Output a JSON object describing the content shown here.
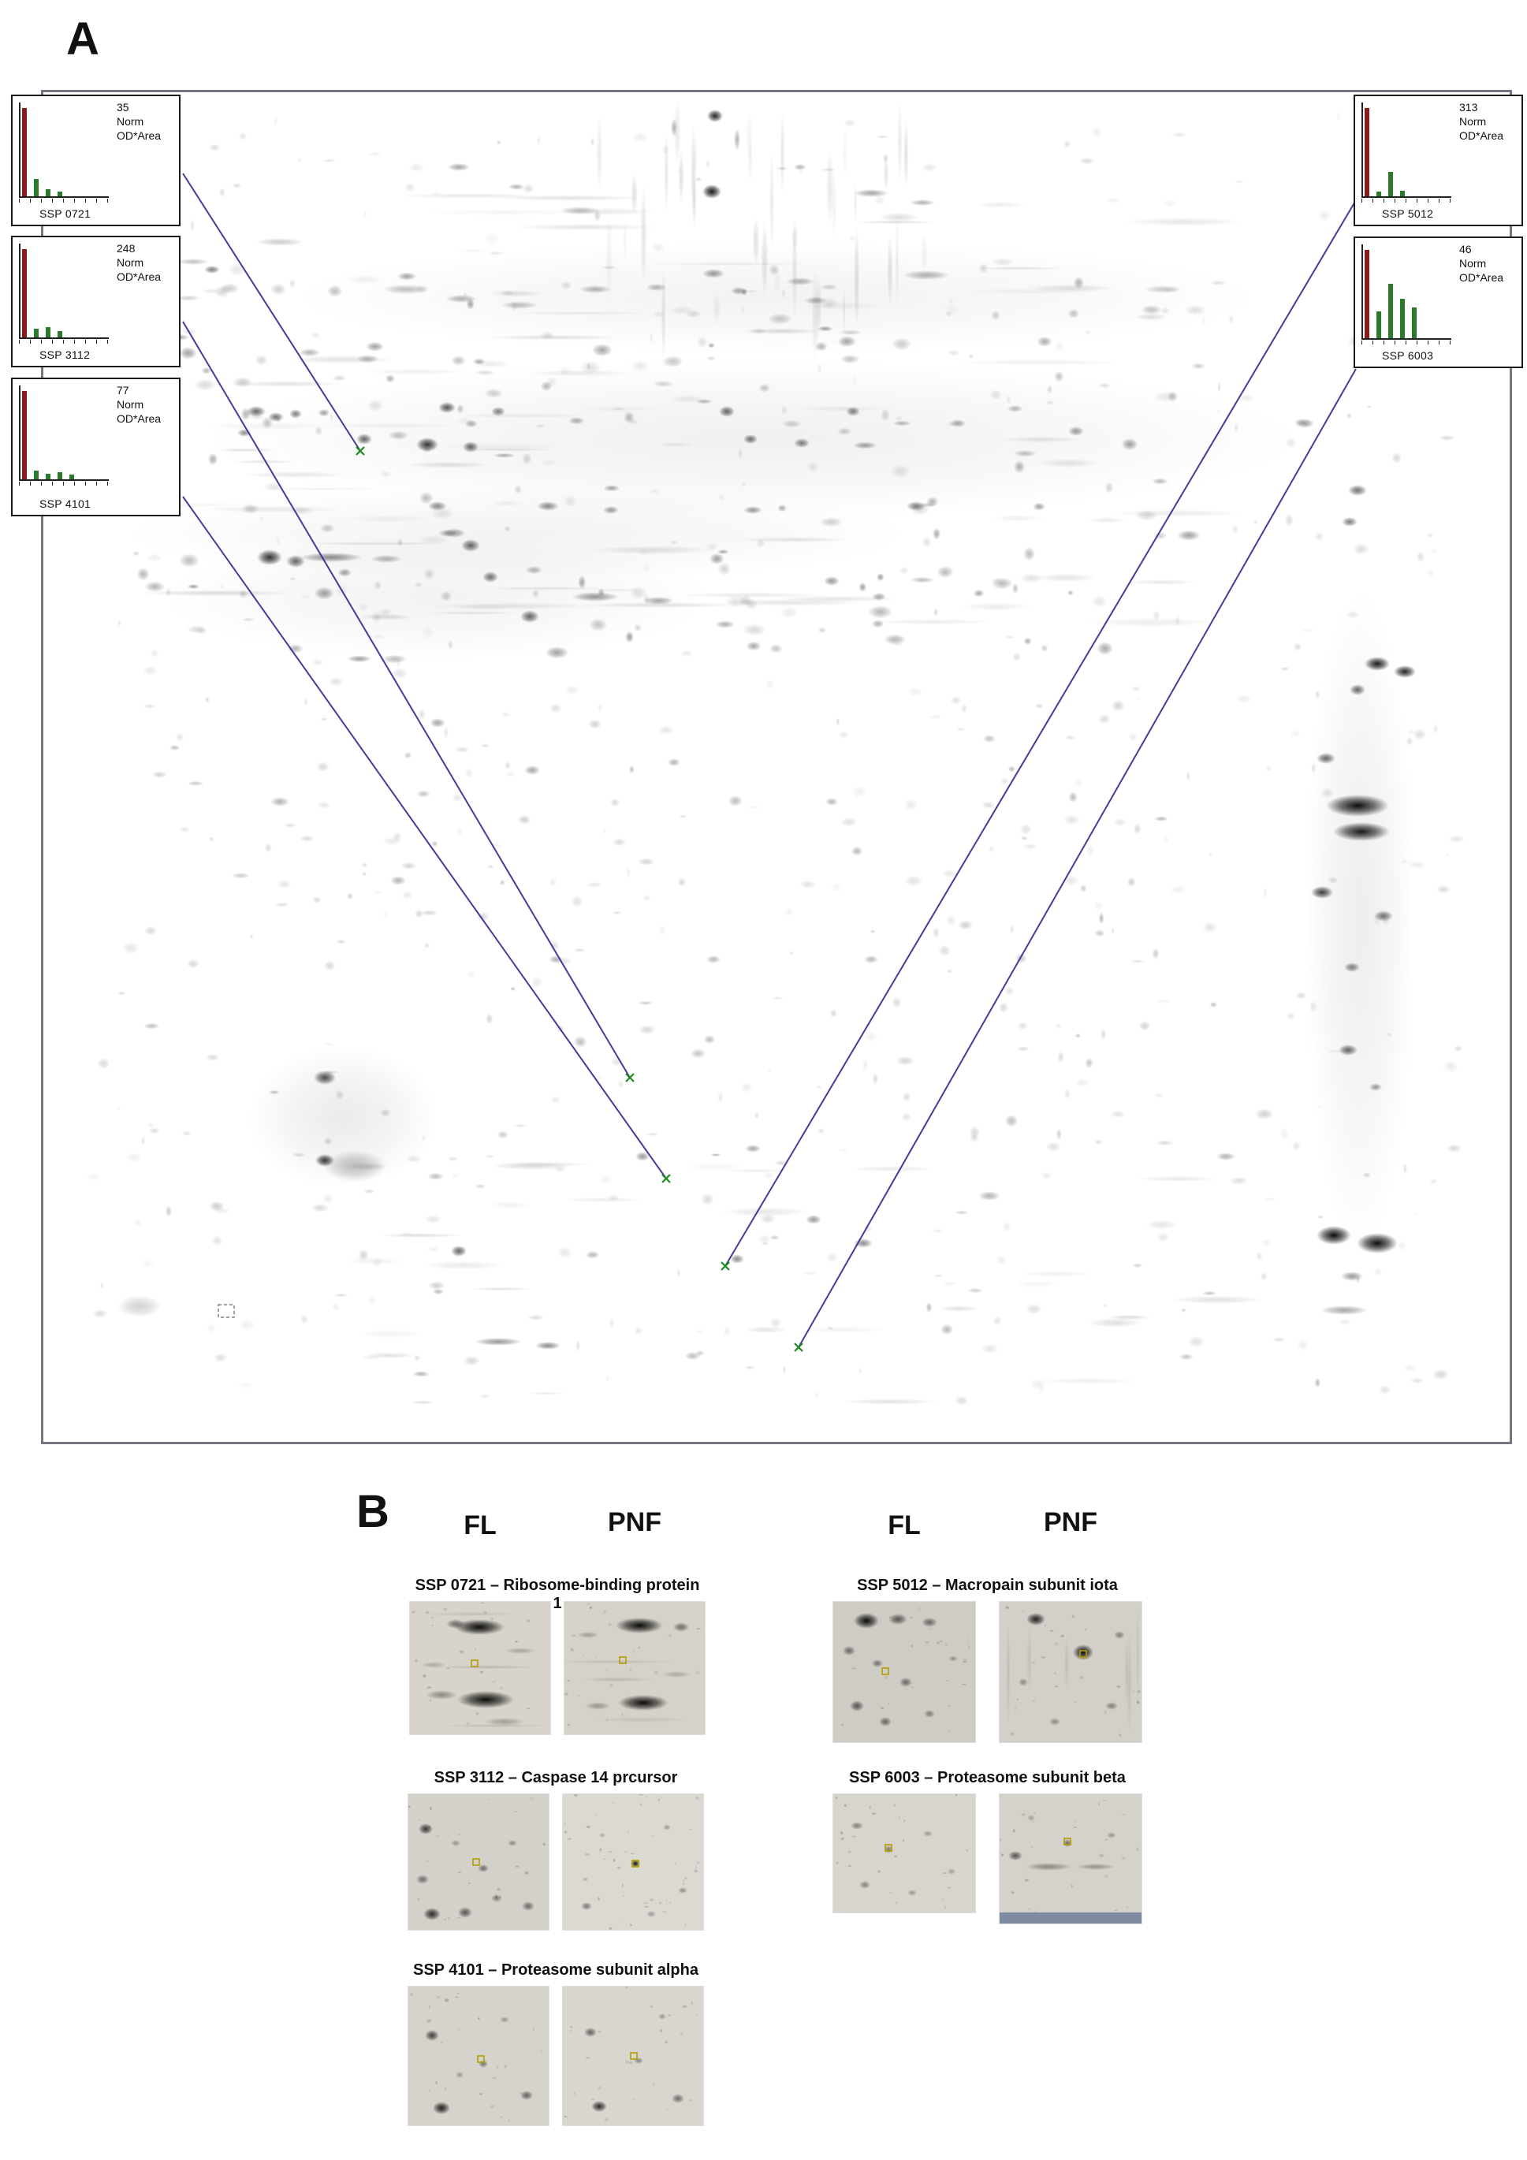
{
  "panels": {
    "a": "A",
    "b": "B"
  },
  "inset_common": {
    "norm": "Norm",
    "unit": "OD*Area"
  },
  "insets_left": [
    {
      "value": "35",
      "ssp": "SSP 0721",
      "bars": [
        {
          "c": "red",
          "h": 1.0
        },
        {
          "c": "green",
          "h": 0.2
        },
        {
          "c": "green",
          "h": 0.08
        },
        {
          "c": "green",
          "h": 0.05
        }
      ]
    },
    {
      "value": "248",
      "ssp": "SSP 3112",
      "bars": [
        {
          "c": "red",
          "h": 1.0
        },
        {
          "c": "green",
          "h": 0.1
        },
        {
          "c": "green",
          "h": 0.12
        },
        {
          "c": "green",
          "h": 0.07
        }
      ]
    },
    {
      "value": "77",
      "ssp": "SSP 4101",
      "bars": [
        {
          "c": "red",
          "h": 1.0
        },
        {
          "c": "green",
          "h": 0.1
        },
        {
          "c": "green",
          "h": 0.06
        },
        {
          "c": "green",
          "h": 0.08
        },
        {
          "c": "green",
          "h": 0.05
        }
      ]
    }
  ],
  "insets_right": [
    {
      "value": "313",
      "ssp": "SSP 5012",
      "bars": [
        {
          "c": "red",
          "h": 1.0
        },
        {
          "c": "green",
          "h": 0.05
        },
        {
          "c": "green",
          "h": 0.28
        },
        {
          "c": "green",
          "h": 0.06
        }
      ]
    },
    {
      "value": "46",
      "ssp": "SSP 6003",
      "bars": [
        {
          "c": "red",
          "h": 1.0
        },
        {
          "c": "green",
          "h": 0.3
        },
        {
          "c": "green",
          "h": 0.62
        },
        {
          "c": "green",
          "h": 0.45
        },
        {
          "c": "green",
          "h": 0.35
        }
      ]
    }
  ],
  "panel_b": {
    "left_group": {
      "col1": "FL",
      "col2": "PNF",
      "rows": [
        {
          "title": "SSP 0721 – Ribosome-binding protein 1"
        },
        {
          "title": "SSP 3112 – Caspase 14 prcursor"
        },
        {
          "title": "SSP 4101 – Proteasome subunit alpha"
        }
      ]
    },
    "right_group": {
      "col1": "FL",
      "col2": "PNF",
      "rows": [
        {
          "title": "SSP 5012 – Macropain subunit iota"
        },
        {
          "title": "SSP 6003 – Proteasome subunit beta"
        }
      ]
    }
  },
  "colors": {
    "connector_line": "#2b2b8f",
    "spot_marker": "#1e8a1e",
    "bar_red": "#8b1a1a",
    "bar_green": "#2d7a2d",
    "crop_marker": "#b49b00",
    "panel_border": "#767683",
    "scan_bar": "#7e8ba0"
  }
}
